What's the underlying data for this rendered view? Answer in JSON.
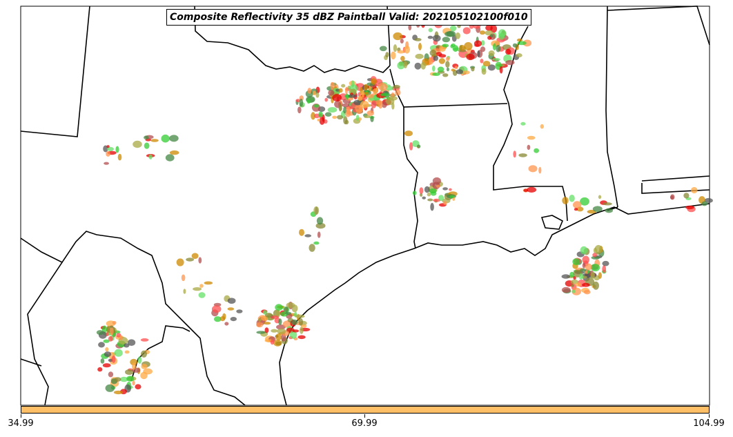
{
  "title": "Composite Reflectivity 35 dBZ Paintball Valid: 202105102100f010",
  "colorbar": {
    "color": "#ffbf66",
    "tick_labels": [
      "34.99",
      "69.99",
      "104.99"
    ]
  },
  "map": {
    "region": "Southern United States / Gulf Coast",
    "background": "#ffffff",
    "border_color": "#000000",
    "paintball_colors": [
      "#e60000",
      "#ff4d4d",
      "#cc8800",
      "#33cc33",
      "#66e066",
      "#888833",
      "#aaaa44",
      "#ff944d",
      "#ffaa44",
      "#b34d4d",
      "#555555",
      "#448844"
    ]
  }
}
